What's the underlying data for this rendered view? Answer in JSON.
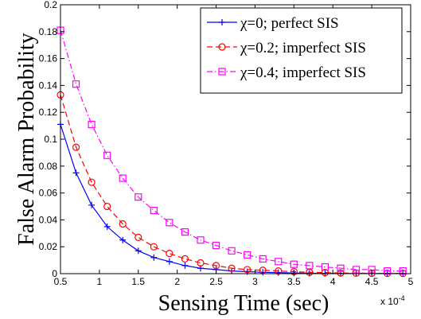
{
  "chart_data": {
    "type": "line",
    "xlabel": "Sensing Time (sec)",
    "ylabel": "False Alarm Probability",
    "x_exponent_label": "x 10",
    "x_exponent_power": "-4",
    "xlim": [
      0.5,
      5
    ],
    "ylim": [
      0,
      0.2
    ],
    "x_ticks": [
      "0.5",
      "1",
      "1.5",
      "2",
      "2.5",
      "3",
      "3.5",
      "4",
      "4.5",
      "5"
    ],
    "y_ticks": [
      "0",
      "0.02",
      "0.04",
      "0.06",
      "0.08",
      "0.1",
      "0.12",
      "0.14",
      "0.16",
      "0.18",
      "0.2"
    ],
    "grid": false,
    "legend_position": "top-right",
    "x": [
      0.5,
      0.7,
      0.9,
      1.1,
      1.3,
      1.5,
      1.7,
      1.9,
      2.1,
      2.3,
      2.5,
      2.7,
      2.9,
      3.1,
      3.3,
      3.5,
      3.7,
      3.9,
      4.1,
      4.3,
      4.5,
      4.7,
      4.9
    ],
    "series": [
      {
        "name": "χ=0; perfect SIS",
        "color": "#0000ff",
        "marker": "plus",
        "dash": "solid",
        "values": [
          0.111,
          0.075,
          0.051,
          0.035,
          0.025,
          0.017,
          0.012,
          0.009,
          0.006,
          0.004,
          0.003,
          0.002,
          0.0015,
          0.001,
          0.0008,
          0.0005,
          0.0003,
          0.0002,
          0.0002,
          0.0001,
          0.0001,
          0.0001,
          0.0001
        ]
      },
      {
        "name": "χ=0.2; imperfect SIS",
        "color": "#ff0000",
        "marker": "circle",
        "dash": "dashed",
        "values": [
          0.133,
          0.094,
          0.068,
          0.05,
          0.037,
          0.027,
          0.02,
          0.015,
          0.011,
          0.008,
          0.006,
          0.004,
          0.003,
          0.0025,
          0.002,
          0.0015,
          0.001,
          0.0008,
          0.0005,
          0.0004,
          0.0003,
          0.0002,
          0.0002
        ]
      },
      {
        "name": "χ=0.4; imperfect SIS",
        "color": "#ff00ff",
        "marker": "square",
        "dash": "dashdot",
        "values": [
          0.181,
          0.141,
          0.111,
          0.088,
          0.071,
          0.057,
          0.047,
          0.038,
          0.031,
          0.025,
          0.021,
          0.017,
          0.014,
          0.011,
          0.009,
          0.007,
          0.006,
          0.005,
          0.004,
          0.003,
          0.003,
          0.002,
          0.002
        ]
      }
    ]
  }
}
